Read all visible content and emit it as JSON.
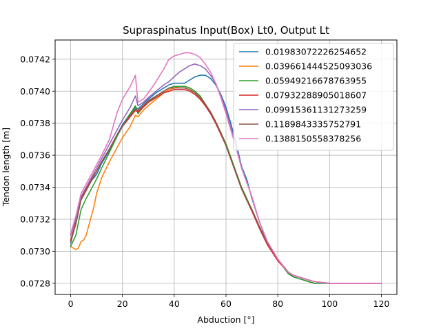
{
  "chart_data": {
    "type": "line",
    "title": "Supraspinatus Input(Box) Lt0, Output Lt",
    "xlabel": "Abduction [°]",
    "ylabel": "Tendon length [m]",
    "xlim": [
      -6,
      126
    ],
    "ylim": [
      0.07273,
      0.07432
    ],
    "xticks": [
      0,
      20,
      40,
      60,
      80,
      100,
      120
    ],
    "yticks": [
      0.0728,
      0.073,
      0.0732,
      0.0734,
      0.0736,
      0.0738,
      0.074,
      0.0742
    ],
    "ytick_labels": [
      "0.0728",
      "0.0730",
      "0.0732",
      "0.0734",
      "0.0736",
      "0.0738",
      "0.0740",
      "0.0742"
    ],
    "grid": true,
    "legend_position": "upper-right",
    "series": [
      {
        "name": "0.01983072226254652",
        "color": "#1f77b4",
        "x": [
          0,
          2,
          4,
          6,
          8,
          10,
          12,
          15,
          18,
          20,
          23,
          25,
          26,
          28,
          30,
          33,
          36,
          38,
          40,
          42,
          44,
          46,
          48,
          50,
          52,
          54,
          56,
          58,
          60,
          62,
          64,
          66,
          68,
          70,
          73,
          76,
          80,
          84,
          86,
          90,
          94,
          100,
          110,
          120
        ],
        "y": [
          0.07305,
          0.07318,
          0.07333,
          0.07339,
          0.07344,
          0.07348,
          0.07355,
          0.07363,
          0.07373,
          0.07379,
          0.07386,
          0.0739,
          0.07389,
          0.07392,
          0.07395,
          0.07399,
          0.07402,
          0.07404,
          0.07405,
          0.07405,
          0.07405,
          0.07407,
          0.07409,
          0.0741,
          0.0741,
          0.07408,
          0.07404,
          0.07398,
          0.0739,
          0.07379,
          0.07367,
          0.07353,
          0.07345,
          0.07333,
          0.07318,
          0.07305,
          0.07295,
          0.07287,
          0.07284,
          0.07282,
          0.0728,
          0.0728,
          0.0728,
          0.0728
        ]
      },
      {
        "name": "0.039661444525093036",
        "color": "#ff7f0e",
        "x": [
          0,
          1,
          2,
          3,
          4,
          5,
          6,
          7,
          8,
          9,
          10,
          12,
          15,
          18,
          20,
          23,
          25,
          26,
          28,
          30,
          33,
          36,
          38,
          40,
          42,
          44,
          46,
          48,
          50,
          52,
          54,
          56,
          58,
          60,
          62,
          64,
          66,
          68,
          70,
          73,
          76,
          80,
          84,
          86,
          90,
          94,
          100,
          110,
          120
        ],
        "y": [
          0.07303,
          0.07302,
          0.07301,
          0.07302,
          0.07306,
          0.07307,
          0.0731,
          0.07316,
          0.07322,
          0.07328,
          0.07336,
          0.07346,
          0.07356,
          0.07365,
          0.07371,
          0.07378,
          0.07385,
          0.07384,
          0.07388,
          0.07391,
          0.07395,
          0.07399,
          0.07401,
          0.07402,
          0.07403,
          0.07403,
          0.07402,
          0.074,
          0.07397,
          0.07392,
          0.07387,
          0.07381,
          0.07374,
          0.07367,
          0.07358,
          0.07349,
          0.0734,
          0.07333,
          0.07326,
          0.07315,
          0.07305,
          0.07295,
          0.07287,
          0.07285,
          0.07283,
          0.07281,
          0.0728,
          0.0728,
          0.0728
        ]
      },
      {
        "name": "0.05949216678763955",
        "color": "#2ca02c",
        "x": [
          0,
          2,
          4,
          6,
          8,
          10,
          12,
          15,
          18,
          20,
          23,
          25,
          26,
          28,
          30,
          33,
          36,
          38,
          40,
          42,
          44,
          46,
          48,
          50,
          52,
          54,
          56,
          58,
          60,
          62,
          64,
          66,
          68,
          70,
          73,
          76,
          80,
          84,
          86,
          90,
          94,
          100,
          110,
          120
        ],
        "y": [
          0.07303,
          0.0731,
          0.07326,
          0.07333,
          0.07339,
          0.07345,
          0.07352,
          0.07362,
          0.07372,
          0.07378,
          0.07386,
          0.07391,
          0.07386,
          0.0739,
          0.07393,
          0.07397,
          0.074,
          0.07402,
          0.07403,
          0.07403,
          0.07403,
          0.07402,
          0.074,
          0.07397,
          0.07392,
          0.07387,
          0.07381,
          0.07374,
          0.07367,
          0.07358,
          0.07349,
          0.0734,
          0.07333,
          0.07326,
          0.07315,
          0.07305,
          0.07295,
          0.07286,
          0.07284,
          0.07282,
          0.0728,
          0.0728,
          0.0728,
          0.0728
        ]
      },
      {
        "name": "0.07932288905018607",
        "color": "#d62728",
        "x": [
          0,
          2,
          4,
          6,
          8,
          10,
          12,
          15,
          18,
          20,
          23,
          25,
          26,
          28,
          30,
          33,
          36,
          38,
          40,
          42,
          44,
          46,
          48,
          50,
          52,
          54,
          56,
          58,
          60,
          62,
          64,
          66,
          68,
          70,
          73,
          76,
          80,
          84,
          86,
          90,
          94,
          100,
          110,
          120
        ],
        "y": [
          0.07307,
          0.07318,
          0.07333,
          0.07339,
          0.07345,
          0.0735,
          0.07356,
          0.07364,
          0.07373,
          0.07378,
          0.07384,
          0.07388,
          0.07387,
          0.0739,
          0.07393,
          0.07396,
          0.07399,
          0.074,
          0.07401,
          0.07401,
          0.07401,
          0.074,
          0.07398,
          0.07395,
          0.07391,
          0.07386,
          0.0738,
          0.07373,
          0.07366,
          0.07357,
          0.07348,
          0.07339,
          0.07332,
          0.07325,
          0.07314,
          0.07304,
          0.07294,
          0.07287,
          0.07285,
          0.07283,
          0.07281,
          0.0728,
          0.0728,
          0.0728
        ]
      },
      {
        "name": "0.09915361131273259",
        "color": "#9467bd",
        "x": [
          0,
          2,
          4,
          6,
          8,
          10,
          12,
          15,
          18,
          20,
          23,
          25,
          26,
          28,
          30,
          33,
          36,
          38,
          40,
          42,
          44,
          46,
          48,
          50,
          52,
          54,
          56,
          58,
          60,
          62,
          64,
          66,
          68,
          70,
          73,
          76,
          80,
          84,
          86,
          90,
          94,
          100,
          110,
          120
        ],
        "y": [
          0.0731,
          0.0732,
          0.07334,
          0.0734,
          0.07346,
          0.07352,
          0.07358,
          0.07367,
          0.07376,
          0.07382,
          0.0739,
          0.07397,
          0.07391,
          0.07393,
          0.07396,
          0.074,
          0.07404,
          0.07406,
          0.07409,
          0.07412,
          0.07414,
          0.07416,
          0.07417,
          0.07416,
          0.07414,
          0.0741,
          0.07405,
          0.07397,
          0.07388,
          0.07377,
          0.07365,
          0.07352,
          0.07343,
          0.07334,
          0.07318,
          0.07306,
          0.07295,
          0.07287,
          0.07285,
          0.07283,
          0.07281,
          0.0728,
          0.0728,
          0.0728
        ]
      },
      {
        "name": "0.1189843335752791",
        "color": "#8c564b",
        "x": [
          0,
          2,
          4,
          6,
          8,
          10,
          12,
          15,
          18,
          20,
          23,
          25,
          26,
          28,
          30,
          33,
          36,
          38,
          40,
          42,
          44,
          46,
          48,
          50,
          52,
          54,
          56,
          58,
          60,
          62,
          64,
          66,
          68,
          70,
          73,
          76,
          80,
          84,
          86,
          90,
          94,
          100,
          110,
          120
        ],
        "y": [
          0.07306,
          0.07317,
          0.07332,
          0.07338,
          0.07344,
          0.0735,
          0.07356,
          0.07364,
          0.07373,
          0.07378,
          0.07385,
          0.07389,
          0.07388,
          0.07391,
          0.07394,
          0.07397,
          0.074,
          0.07402,
          0.07402,
          0.07402,
          0.07402,
          0.07401,
          0.07399,
          0.07396,
          0.07392,
          0.07387,
          0.07381,
          0.07374,
          0.07366,
          0.07357,
          0.07348,
          0.07339,
          0.07332,
          0.07326,
          0.07315,
          0.07305,
          0.07295,
          0.07287,
          0.07285,
          0.07283,
          0.07281,
          0.0728,
          0.0728,
          0.0728
        ]
      },
      {
        "name": "0.1388150558378256",
        "color": "#e377c2",
        "x": [
          0,
          2,
          4,
          6,
          8,
          10,
          12,
          15,
          18,
          20,
          23,
          25,
          26,
          28,
          30,
          33,
          36,
          38,
          40,
          42,
          44,
          46,
          48,
          50,
          52,
          54,
          56,
          58,
          60,
          62,
          64,
          66,
          68,
          70,
          73,
          76,
          80,
          84,
          86,
          90,
          94,
          100,
          110,
          120
        ],
        "y": [
          0.07311,
          0.07322,
          0.07336,
          0.07342,
          0.07348,
          0.07354,
          0.0736,
          0.0737,
          0.07387,
          0.07395,
          0.07403,
          0.0741,
          0.07393,
          0.07395,
          0.07399,
          0.07406,
          0.07414,
          0.0742,
          0.07422,
          0.07423,
          0.07424,
          0.07424,
          0.07423,
          0.07421,
          0.07417,
          0.07412,
          0.07405,
          0.07396,
          0.07386,
          0.07375,
          0.07364,
          0.07352,
          0.07343,
          0.07334,
          0.07318,
          0.07306,
          0.07295,
          0.07287,
          0.07285,
          0.07283,
          0.07281,
          0.0728,
          0.0728,
          0.0728
        ]
      }
    ]
  }
}
